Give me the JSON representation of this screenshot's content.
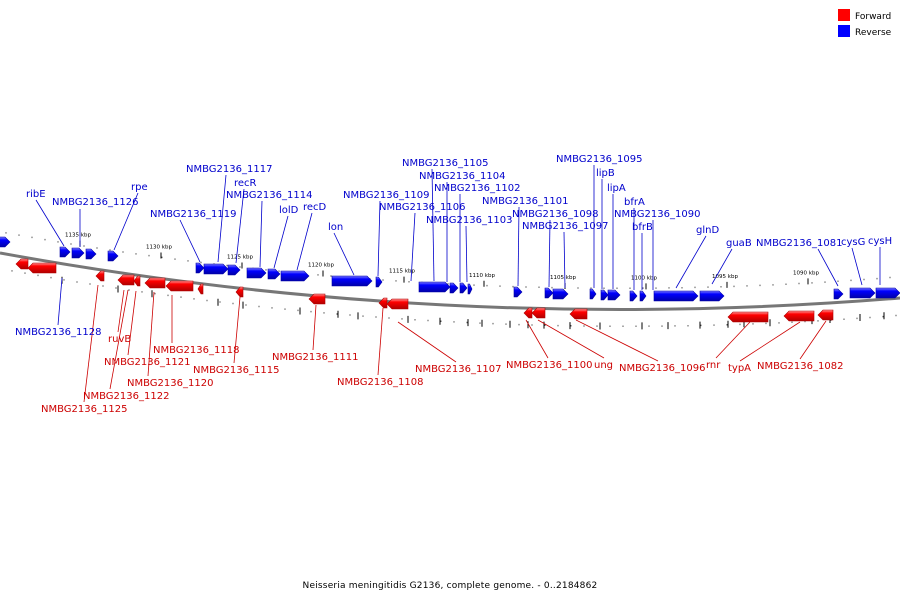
{
  "title": "Neisseria meningitidis G2136, complete genome. - 0..2184862",
  "legend": [
    {
      "label": "Forward",
      "color": "#ff0000"
    },
    {
      "label": "Reverse",
      "color": "#0000ff"
    }
  ],
  "colors": {
    "forward": "#ff0000",
    "forward_dark": "#b00000",
    "forward_text": "#cc0000",
    "reverse": "#0000ff",
    "reverse_dark": "#0000a8",
    "reverse_text": "#0000cc",
    "backbone": "#777777"
  },
  "scale_ticks": [
    "1135 kbp",
    "1130 kbp",
    "1125 kbp",
    "1120 kbp",
    "1115 kbp",
    "1110 kbp",
    "1105 kbp",
    "1100 kbp",
    "1095 kbp",
    "1090 kbp"
  ],
  "reverse_genes": [
    {
      "label": "ribE"
    },
    {
      "label": "NMBG2136_1126"
    },
    {
      "label": "rpe"
    },
    {
      "label": "NMBG2136_1119"
    },
    {
      "label": "NMBG2136_1117"
    },
    {
      "label": "recR"
    },
    {
      "label": "NMBG2136_1114"
    },
    {
      "label": "lolD"
    },
    {
      "label": "recD"
    },
    {
      "label": "lon"
    },
    {
      "label": "NMBG2136_1109"
    },
    {
      "label": "NMBG2136_1106"
    },
    {
      "label": "NMBG2136_1105"
    },
    {
      "label": "NMBG2136_1104"
    },
    {
      "label": "NMBG2136_1102"
    },
    {
      "label": "NMBG2136_1103"
    },
    {
      "label": "NMBG2136_1101"
    },
    {
      "label": "NMBG2136_1098"
    },
    {
      "label": "NMBG2136_1097"
    },
    {
      "label": "NMBG2136_1095"
    },
    {
      "label": "lipB"
    },
    {
      "label": "lipA"
    },
    {
      "label": "bfrA"
    },
    {
      "label": "NMBG2136_1090"
    },
    {
      "label": "bfrB"
    },
    {
      "label": "glnD"
    },
    {
      "label": "guaB"
    },
    {
      "label": "NMBG2136_1081"
    },
    {
      "label": "cysG"
    },
    {
      "label": "cysH"
    },
    {
      "label": "NMBG2136_1128"
    }
  ],
  "forward_genes": [
    {
      "label": "ruvB"
    },
    {
      "label": "NMBG2136_1121"
    },
    {
      "label": "NMBG2136_1118"
    },
    {
      "label": "NMBG2136_1120"
    },
    {
      "label": "NMBG2136_1122"
    },
    {
      "label": "NMBG2136_1125"
    },
    {
      "label": "NMBG2136_1115"
    },
    {
      "label": "NMBG2136_1111"
    },
    {
      "label": "NMBG2136_1108"
    },
    {
      "label": "NMBG2136_1107"
    },
    {
      "label": "NMBG2136_1100"
    },
    {
      "label": "ung"
    },
    {
      "label": "NMBG2136_1096"
    },
    {
      "label": "rnr"
    },
    {
      "label": "typA"
    },
    {
      "label": "NMBG2136_1082"
    }
  ]
}
